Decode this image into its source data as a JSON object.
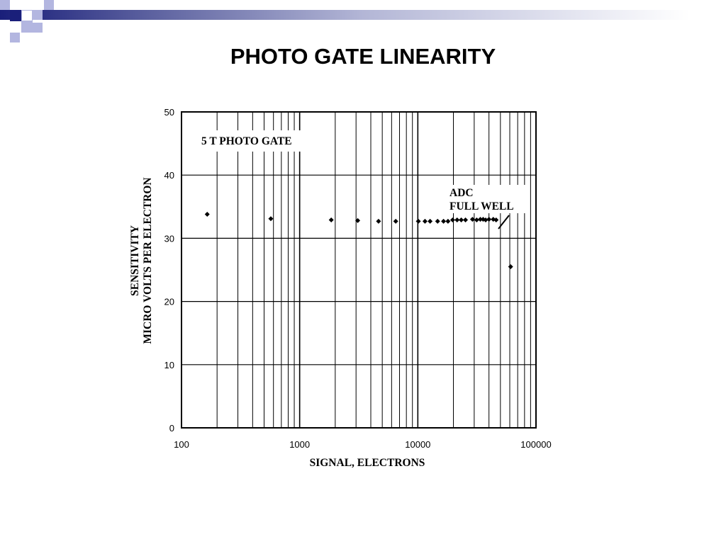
{
  "slide": {
    "title": "PHOTO GATE LINEARITY",
    "accent_colors": [
      "#1a1f7a",
      "#b3b6e0"
    ]
  },
  "chart_data": {
    "type": "scatter",
    "xscale": "log",
    "xlim": [
      100,
      100000
    ],
    "ylim": [
      0,
      50
    ],
    "xticks": [
      100,
      1000,
      10000,
      100000
    ],
    "xtick_labels": [
      "100",
      "1000",
      "10000",
      "100000"
    ],
    "yticks": [
      0,
      10,
      20,
      30,
      40,
      50
    ],
    "ytick_labels": [
      "0",
      "10",
      "20",
      "30",
      "40",
      "50"
    ],
    "xlabel": "SIGNAL, ELECTRONS",
    "ylabel_line1": "SENSITIVITY",
    "ylabel_line2": "MICRO VOLTS PER ELECTRON",
    "grid": true,
    "series": [
      {
        "label": "5 T PHOTO GATE",
        "color": "#000000",
        "marker": "diamond",
        "points": [
          [
            165,
            33.8
          ],
          [
            570,
            33.1
          ],
          [
            1850,
            32.9
          ],
          [
            3100,
            32.8
          ],
          [
            4650,
            32.7
          ],
          [
            6500,
            32.7
          ],
          [
            10100,
            32.7
          ],
          [
            11500,
            32.7
          ],
          [
            12700,
            32.7
          ],
          [
            14700,
            32.7
          ],
          [
            16500,
            32.7
          ],
          [
            18000,
            32.7
          ],
          [
            19700,
            32.9
          ],
          [
            21500,
            32.9
          ],
          [
            23300,
            32.9
          ],
          [
            25300,
            32.9
          ],
          [
            29000,
            33.0
          ],
          [
            31500,
            32.9
          ],
          [
            33800,
            33.0
          ],
          [
            35700,
            33.0
          ],
          [
            37500,
            32.9
          ],
          [
            40000,
            33.0
          ],
          [
            43500,
            33.0
          ],
          [
            46000,
            32.9
          ],
          [
            61000,
            25.5
          ]
        ]
      }
    ],
    "annotation": {
      "line1": "ADC",
      "line2": "FULL WELL",
      "x": 50000,
      "y": 31.5
    }
  }
}
